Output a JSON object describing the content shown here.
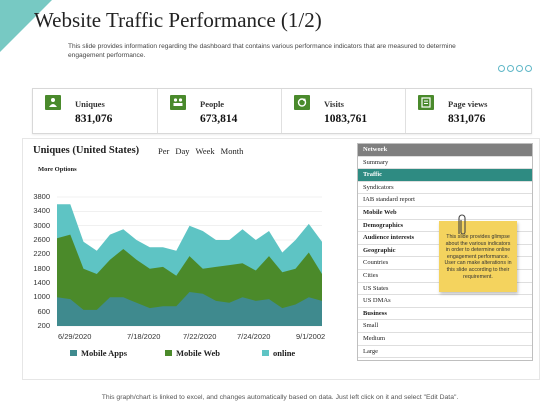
{
  "header": {
    "title": "Website Traffic Performance (1/2)",
    "subtitle": "This slide provides information regarding the dashboard that contains various performance indicators that are measured to determine engagement performance."
  },
  "kpis": [
    {
      "label": "Uniques",
      "value": "831,076",
      "icon": "users-icon"
    },
    {
      "label": "People",
      "value": "673,814",
      "icon": "people-icon"
    },
    {
      "label": "Visits",
      "value": "1083,761",
      "icon": "refresh-icon"
    },
    {
      "label": "Page views",
      "value": "831,076",
      "icon": "page-icon"
    }
  ],
  "chart": {
    "title": "Uniques (United States)",
    "periods": [
      "Per",
      "Day",
      "Week",
      "Month"
    ],
    "more_options": "More Options"
  },
  "network": {
    "header": "Network",
    "items": [
      {
        "label": "Summary",
        "style": "normal"
      },
      {
        "label": "Traffic",
        "style": "selected"
      },
      {
        "label": "Syndicators",
        "style": "normal"
      },
      {
        "label": "IAB standard report",
        "style": "normal"
      },
      {
        "label": "Mobile Web",
        "style": "bold"
      },
      {
        "label": "Demographics",
        "style": "bold"
      },
      {
        "label": "Audience interests",
        "style": "bold"
      },
      {
        "label": "Geographic",
        "style": "bold"
      },
      {
        "label": "Countries",
        "style": "normal"
      },
      {
        "label": "Cities",
        "style": "normal"
      },
      {
        "label": "US States",
        "style": "normal"
      },
      {
        "label": "US DMAs",
        "style": "normal"
      },
      {
        "label": "Business",
        "style": "bold"
      },
      {
        "label": "Small",
        "style": "normal"
      },
      {
        "label": "Medium",
        "style": "normal"
      },
      {
        "label": "Large",
        "style": "normal"
      }
    ]
  },
  "sticky_note": {
    "text": "This slide provides glimpse about the various indicators in order to determine online engagement performance. User can make alterations in this slide according to their requirement."
  },
  "footer": {
    "text": "This graph/chart is linked to excel, and changes automatically based on data. Just left click on it and select \"Edit Data\"."
  },
  "colors": {
    "accent": "#5fc0b8",
    "green": "#4a8a2c",
    "teal_dark": "#2e8b82",
    "mobile_apps": "#3f8a8e",
    "mobile_web": "#4b8a2a",
    "online": "#5ec4c4"
  },
  "chart_data": {
    "type": "area",
    "stacked": true,
    "ylim": [
      200,
      3800
    ],
    "yticks": [
      200,
      600,
      1000,
      1400,
      1800,
      2200,
      2600,
      3000,
      3400,
      3800
    ],
    "xtick_labels": [
      "6/29/2020",
      "7/18/2020",
      "7/22/2020",
      "7/24/2020",
      "9/1/2002"
    ],
    "series": [
      {
        "name": "Mobile Apps",
        "color": "#3f8a8e",
        "values": [
          1000,
          950,
          650,
          650,
          1000,
          1000,
          850,
          700,
          750,
          750,
          1150,
          1100,
          900,
          850,
          1000,
          900,
          950,
          700,
          800,
          1000,
          900
        ]
      },
      {
        "name": "Mobile Web",
        "color": "#4b8a2a",
        "values": [
          2650,
          2750,
          1800,
          1650,
          2050,
          2350,
          2050,
          1800,
          1850,
          1600,
          2150,
          1800,
          1850,
          1900,
          1950,
          1750,
          2150,
          1700,
          1800,
          2250,
          1650
        ]
      },
      {
        "name": "online",
        "color": "#5ec4c4",
        "values": [
          3600,
          3600,
          2550,
          2300,
          2750,
          2900,
          2600,
          2400,
          2400,
          2300,
          3000,
          2850,
          2600,
          2600,
          2900,
          2600,
          2850,
          2250,
          2600,
          3050,
          2550
        ]
      }
    ]
  }
}
